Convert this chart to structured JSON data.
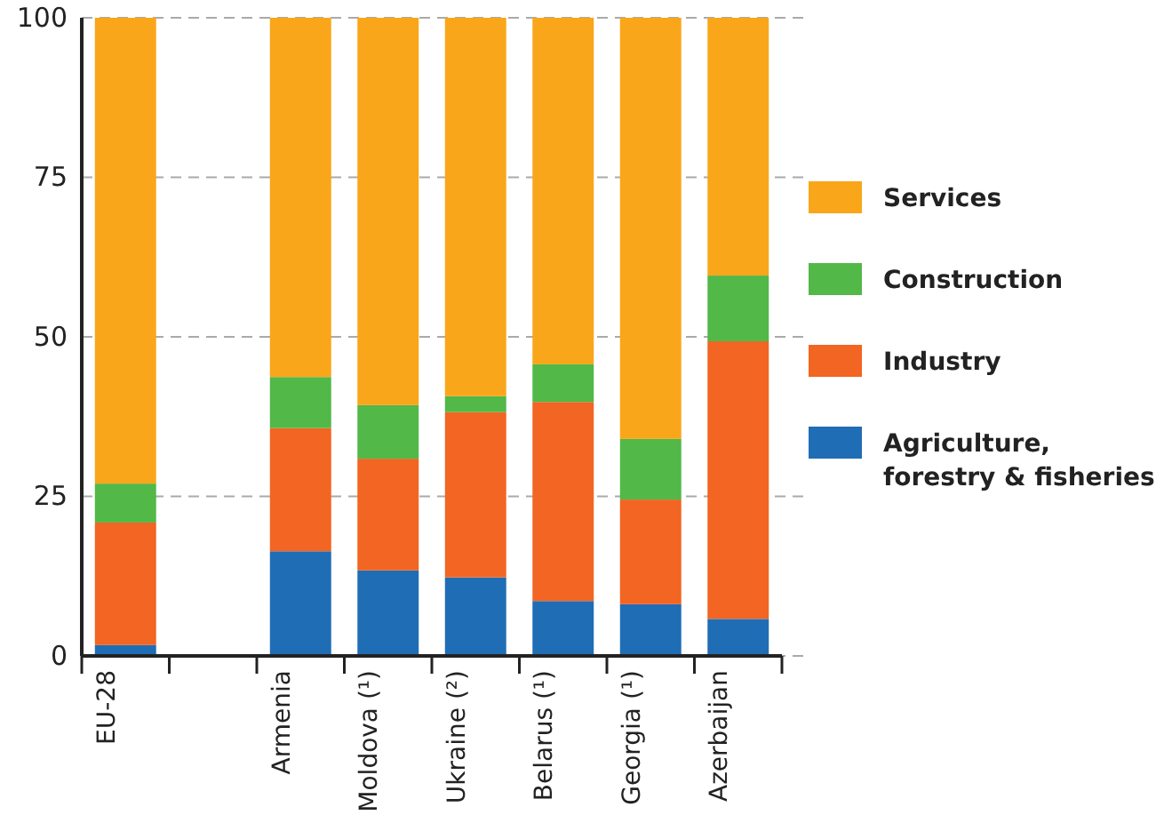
{
  "chart_data": {
    "type": "bar",
    "stacked": true,
    "categories": [
      "EU-28",
      null,
      "Armenia",
      "Moldova (¹)",
      "Ukraine (²)",
      "Belarus (¹)",
      "Georgia (¹)",
      "Azerbaijan"
    ],
    "series": [
      {
        "name": "Agriculture, forestry & fisheries",
        "color": "#1f6db5",
        "values": [
          1.7,
          null,
          16.4,
          13.4,
          12.3,
          8.6,
          8.1,
          5.8
        ]
      },
      {
        "name": "Industry",
        "color": "#f26522",
        "values": [
          19.2,
          null,
          19.3,
          17.5,
          25.9,
          31.2,
          16.4,
          43.5
        ]
      },
      {
        "name": "Construction",
        "color": "#52b848",
        "values": [
          6.1,
          null,
          8.0,
          8.4,
          2.5,
          5.9,
          9.5,
          10.3
        ]
      },
      {
        "name": "Services",
        "color": "#f9a61a",
        "values": [
          73.0,
          null,
          56.3,
          60.7,
          59.3,
          54.3,
          66.0,
          40.4
        ]
      }
    ],
    "ylim": [
      0,
      100
    ],
    "yticks": [
      0,
      25,
      50,
      75,
      100
    ],
    "grid": "y",
    "legend": "right"
  }
}
